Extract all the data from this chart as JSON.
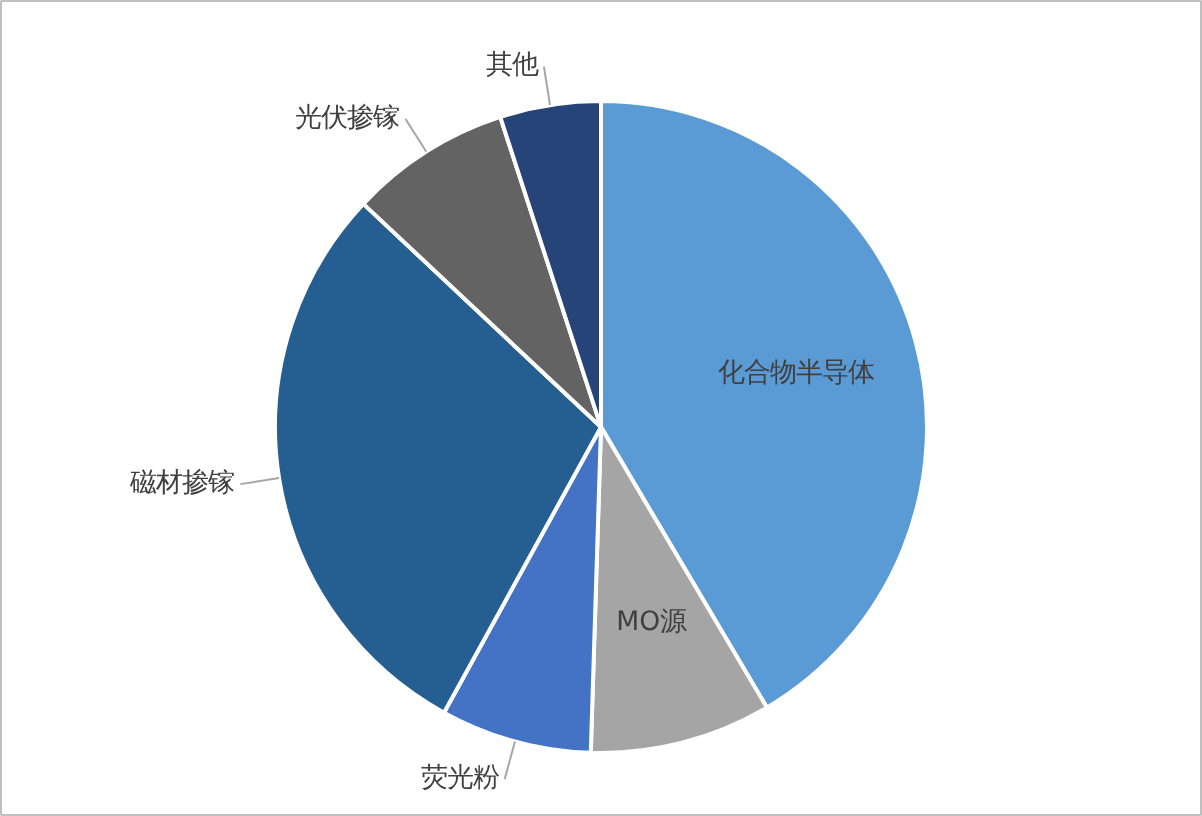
{
  "chart_data": {
    "type": "pie",
    "categories": [
      "化合物半导体",
      "MO源",
      "荧光粉",
      "磁材掺镓",
      "光伏掺镓",
      "其他"
    ],
    "values": [
      41.5,
      9,
      7.5,
      29,
      8,
      5
    ],
    "colors": [
      "#5b9bd5",
      "#a5a5a5",
      "#4472c4",
      "#255e91",
      "#636363",
      "#264478"
    ]
  }
}
